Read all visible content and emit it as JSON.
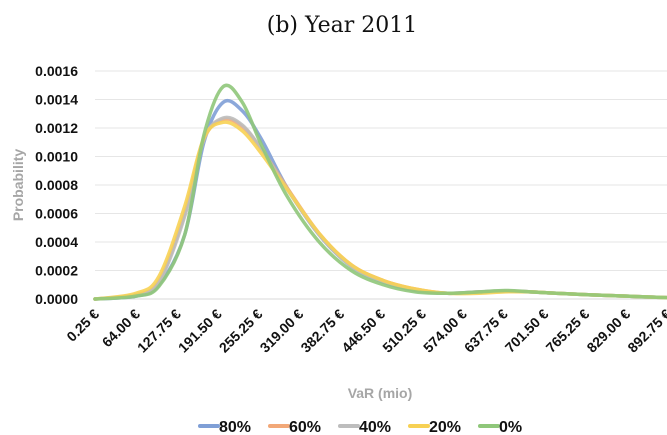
{
  "chart_data": {
    "type": "line",
    "title": "(b) Year 2011",
    "xlabel": "VaR (mio)",
    "ylabel": "Probability",
    "categories": [
      "0.25 €",
      "64.00 €",
      "127.75 €",
      "191.50 €",
      "255.25 €",
      "319.00 €",
      "382.75 €",
      "446.50 €",
      "510.25 €",
      "574.00 €",
      "637.75 €",
      "701.50 €",
      "765.25 €",
      "829.00 €",
      "892.75 €"
    ],
    "ylim": [
      0,
      0.0016
    ],
    "yticks": [
      "0.0000",
      "0.0002",
      "0.0004",
      "0.0006",
      "0.0008",
      "0.0010",
      "0.0012",
      "0.0014",
      "0.0016"
    ],
    "grid": true,
    "legend_position": "bottom",
    "series": [
      {
        "name": "80%",
        "color": "#7f9fd6",
        "x": [
          0,
          64,
          100,
          140,
          170,
          200,
          230,
          260,
          300,
          350,
          400,
          450,
          500,
          550,
          600,
          640,
          680,
          720,
          770,
          830,
          893
        ],
        "values": [
          0,
          2e-05,
          0.0001,
          0.00045,
          0.0011,
          0.00138,
          0.00132,
          0.00112,
          0.00078,
          0.00045,
          0.00023,
          0.00012,
          6e-05,
          4e-05,
          5e-05,
          5.5e-05,
          5e-05,
          4e-05,
          3e-05,
          2e-05,
          1e-05
        ]
      },
      {
        "name": "60%",
        "color": "#f2a878",
        "x": [
          0,
          64,
          100,
          140,
          170,
          200,
          230,
          260,
          300,
          350,
          400,
          450,
          500,
          550,
          600,
          640,
          680,
          720,
          770,
          830,
          893
        ],
        "values": [
          0,
          3e-05,
          0.00013,
          0.0006,
          0.00112,
          0.00126,
          0.00121,
          0.00105,
          0.00078,
          0.00046,
          0.00024,
          0.00013,
          7e-05,
          4e-05,
          5e-05,
          5.5e-05,
          5e-05,
          4e-05,
          3e-05,
          2e-05,
          1e-05
        ]
      },
      {
        "name": "40%",
        "color": "#bdbdbd",
        "x": [
          0,
          64,
          100,
          140,
          170,
          200,
          230,
          260,
          300,
          350,
          400,
          450,
          500,
          550,
          600,
          640,
          680,
          720,
          770,
          830,
          893
        ],
        "values": [
          0,
          3e-05,
          0.00012,
          0.00058,
          0.00112,
          0.00127,
          0.00122,
          0.00105,
          0.00077,
          0.00045,
          0.00023,
          0.00012,
          6e-05,
          4e-05,
          5e-05,
          5.5e-05,
          5e-05,
          4e-05,
          3e-05,
          2e-05,
          1e-05
        ]
      },
      {
        "name": "20%",
        "color": "#f7d154",
        "x": [
          0,
          64,
          100,
          140,
          170,
          200,
          230,
          260,
          300,
          350,
          400,
          450,
          500,
          550,
          600,
          640,
          680,
          720,
          770,
          830,
          893
        ],
        "values": [
          0,
          4e-05,
          0.00016,
          0.00065,
          0.00113,
          0.00124,
          0.00118,
          0.00102,
          0.00077,
          0.00046,
          0.00024,
          0.00013,
          7e-05,
          4e-05,
          4e-05,
          5e-05,
          5e-05,
          4e-05,
          3e-05,
          2e-05,
          1e-05
        ]
      },
      {
        "name": "0%",
        "color": "#8fc77a",
        "x": [
          0,
          64,
          100,
          140,
          170,
          200,
          230,
          260,
          300,
          350,
          400,
          450,
          500,
          550,
          600,
          640,
          680,
          720,
          770,
          830,
          893
        ],
        "values": [
          0,
          2e-05,
          9e-05,
          0.00045,
          0.00115,
          0.00149,
          0.00138,
          0.00108,
          0.00072,
          0.0004,
          0.0002,
          0.0001,
          5e-05,
          4e-05,
          5e-05,
          6e-05,
          5e-05,
          4e-05,
          3e-05,
          2e-05,
          1e-05
        ]
      }
    ]
  }
}
